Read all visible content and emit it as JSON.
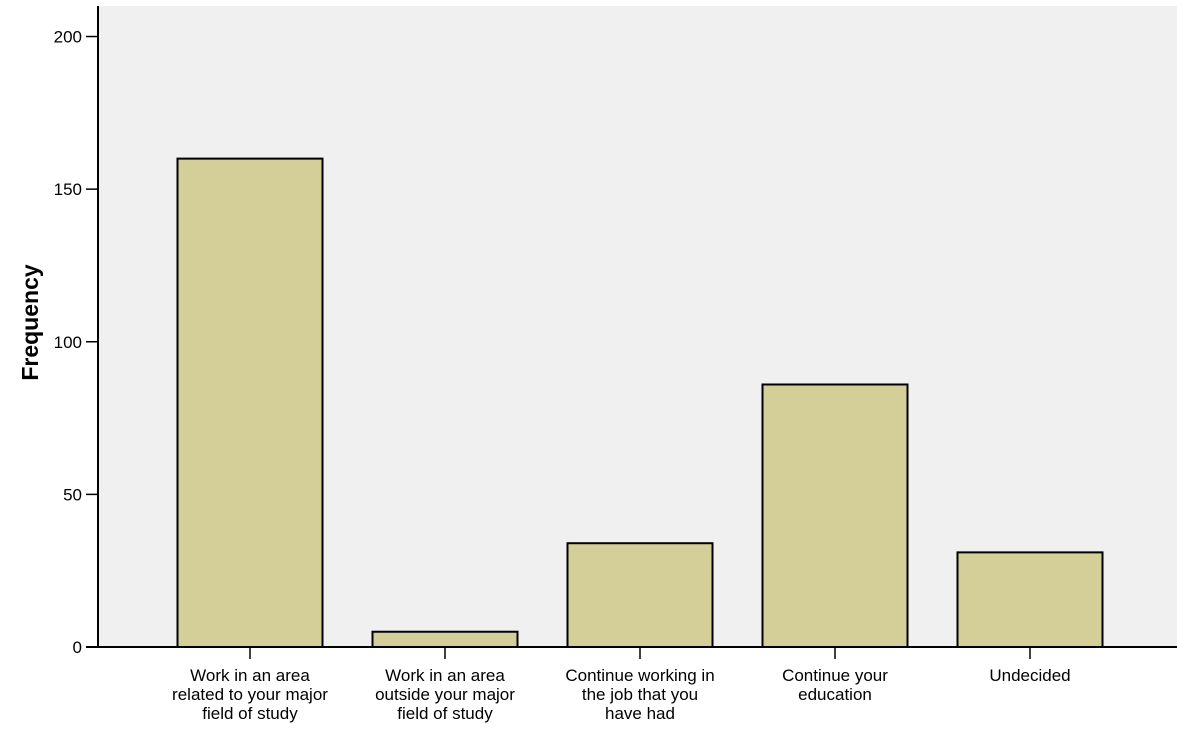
{
  "chart_data": {
    "type": "bar",
    "title": "",
    "xlabel": "",
    "ylabel": "Frequency",
    "ylim": [
      0,
      210
    ],
    "yticks": [
      0,
      50,
      100,
      150,
      200
    ],
    "categories": [
      [
        "Work in an area",
        "related to your major",
        "field of study"
      ],
      [
        "Work in an area",
        "outside your major",
        "field of study"
      ],
      [
        "Continue working in",
        "the job that you",
        "have had"
      ],
      [
        "Continue your",
        "education"
      ],
      [
        "Undecided"
      ]
    ],
    "values": [
      160,
      5,
      34,
      86,
      31
    ],
    "grid": false,
    "legend": "none",
    "colors": {
      "bar_fill": "#d4cf99",
      "bar_stroke": "#000000",
      "plot_background": "#f0f0f0",
      "axis": "#000000"
    }
  }
}
